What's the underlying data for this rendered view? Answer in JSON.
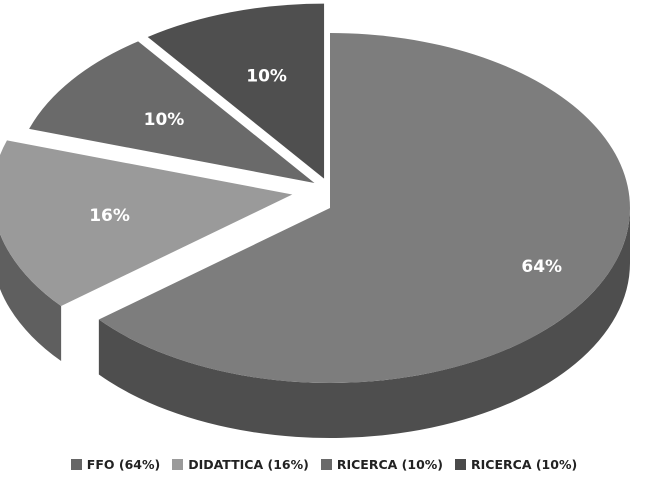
{
  "chart_data": {
    "type": "pie",
    "style": "3d-exploded",
    "legend_position": "bottom",
    "slices": [
      {
        "label": "FFO (64%)",
        "value": 64,
        "data_label": "64%",
        "color": "#7d7d7d"
      },
      {
        "label": "DIDATTICA (16%)",
        "value": 16,
        "data_label": "16%",
        "color": "#9a9a9a"
      },
      {
        "label": "RICERCA (10%)",
        "value": 10,
        "data_label": "10%",
        "color": "#6a6a6a"
      },
      {
        "label": "RICERCA (10%)",
        "value": 10,
        "data_label": "10%",
        "color": "#4f4f4f"
      }
    ],
    "legend_swatch_colors": [
      "#666666",
      "#9a9a9a",
      "#6a6a6a",
      "#4a4a4a"
    ]
  }
}
